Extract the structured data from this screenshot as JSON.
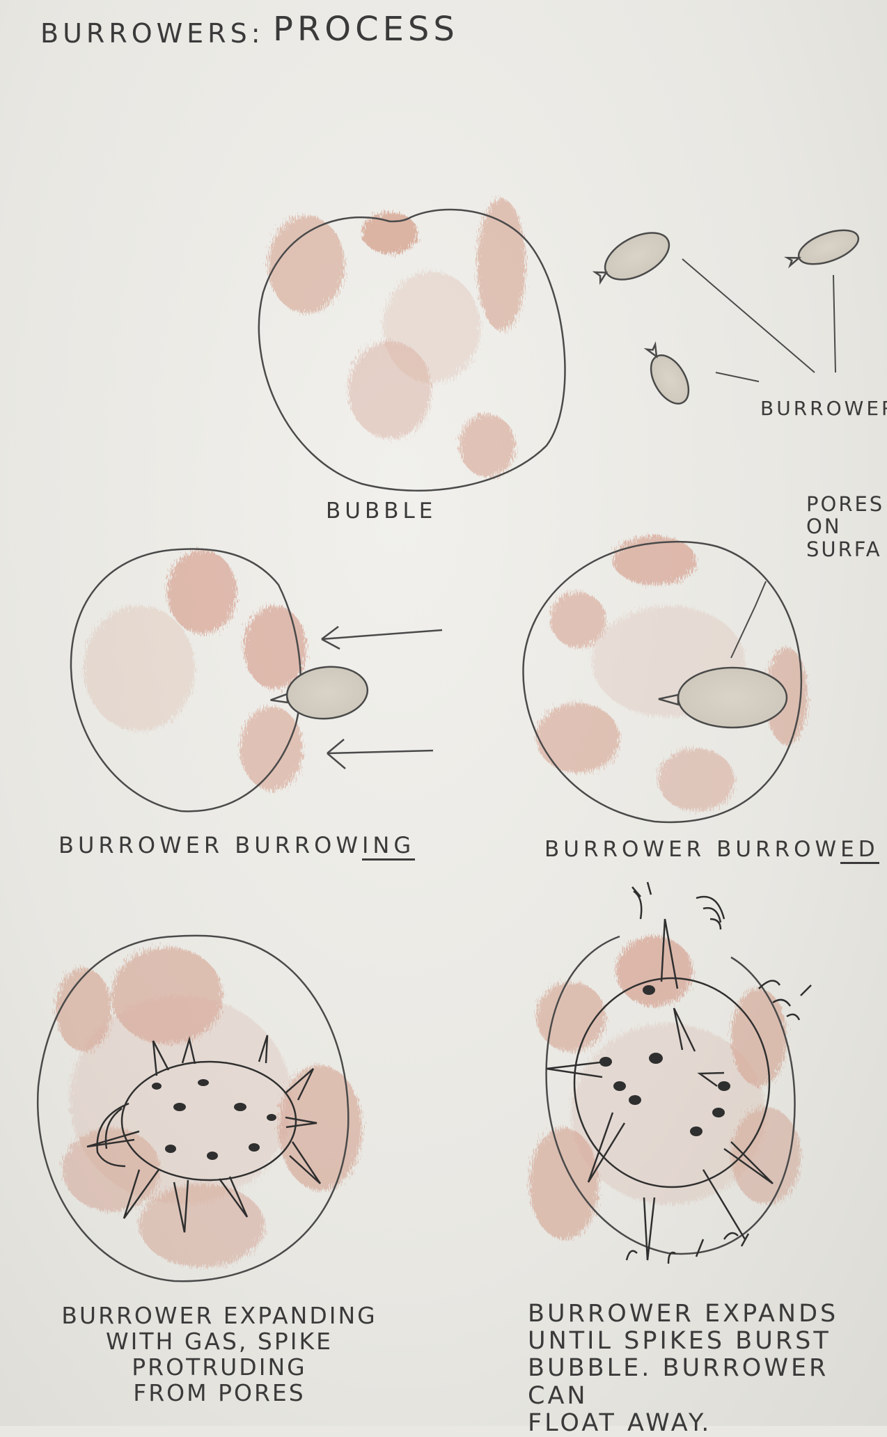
{
  "title_left": "BURROWERS:",
  "title_right": "PROCESS",
  "burrowers_note": "BURROWERS",
  "pores_note": "PORES\nON\nSURFA",
  "labels": {
    "bubble": "BUBBLE",
    "burrowing_a": "BURROWER BURROW",
    "burrowing_b": "ING",
    "burrowed_a": "BURROWER BURROW",
    "burrowed_b": "ED",
    "expanding": "BURROWER EXPANDING\nWITH GAS, SPIKE PROTRUDING\nFROM PORES",
    "burst": "BURROWER EXPANDS\nUNTIL SPIKES BURST\nBUBBLE. BURROWER CAN\nFLOAT AWAY."
  },
  "colors": {
    "pencil": "#3a3a3a",
    "shading": "#c46a4e",
    "paper": "#ebeae5"
  }
}
